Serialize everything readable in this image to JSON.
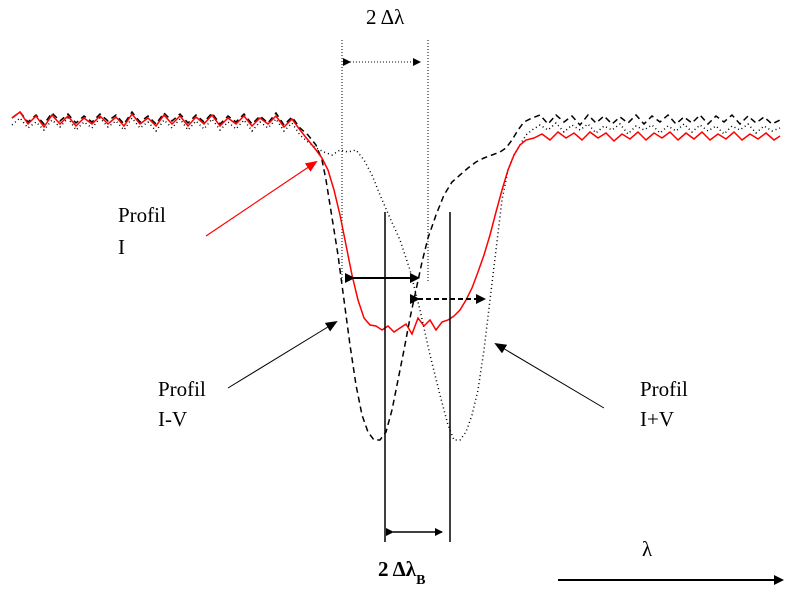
{
  "labels": {
    "two_delta_lambda": "2 Δλ",
    "profil_i_line1": "Profil",
    "profil_i_line2": "I",
    "profil_iminusv_line1": "Profil",
    "profil_iminusv_line2": "I-V",
    "profil_iplusv_line1": "Profil",
    "profil_iplusv_line2": "I+V",
    "two_delta_lambda_b_main": "2 Δλ",
    "two_delta_lambda_b_sub": "B",
    "lambda_axis": "λ"
  },
  "colors": {
    "profile_i": "#ff0000",
    "profile_iminusv": "#000000",
    "profile_iplusv": "#000000",
    "annotations": "#000000"
  }
}
